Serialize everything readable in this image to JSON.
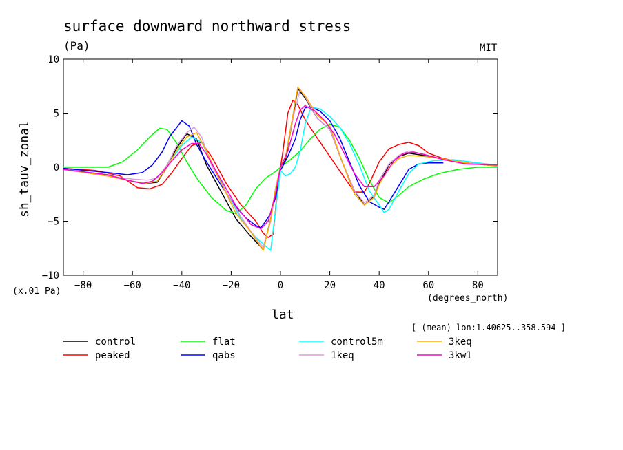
{
  "chart_data": {
    "type": "line",
    "title": "surface downward northward stress",
    "units": "(Pa)",
    "source": "MIT",
    "scale_note": "(x.01 Pa)",
    "xlabel": "lat",
    "x_units": "(degrees_north)",
    "ylabel": "sh_tauv_zonal",
    "subtitle": "[ (mean) lon:1.40625..358.594 ]",
    "xlim": [
      -88,
      88
    ],
    "ylim": [
      -10,
      10
    ],
    "x_ticks": [
      -80,
      -60,
      -40,
      -20,
      0,
      20,
      40,
      60,
      80
    ],
    "x_tick_labels": [
      "−80",
      "−60",
      "−40",
      "−20",
      "0",
      "20",
      "40",
      "60",
      "80"
    ],
    "y_ticks": [
      -10,
      -5,
      0,
      5,
      10
    ],
    "y_tick_labels": [
      "−10",
      "−5",
      "0",
      "5",
      "10"
    ],
    "series": [
      {
        "name": "control",
        "color": "#000000",
        "points": [
          [
            -88,
            -0.2
          ],
          [
            -70,
            -0.8
          ],
          [
            -60,
            -1.3
          ],
          [
            -55,
            -1.5
          ],
          [
            -50,
            -1.4
          ],
          [
            -46,
            0
          ],
          [
            -42,
            1.8
          ],
          [
            -38,
            3.1
          ],
          [
            -34,
            2.6
          ],
          [
            -30,
            0.2
          ],
          [
            -24,
            -2.3
          ],
          [
            -18,
            -4.8
          ],
          [
            -12,
            -6.4
          ],
          [
            -7,
            -7.6
          ],
          [
            -4,
            -4.8
          ],
          [
            -2,
            -2
          ],
          [
            0,
            0
          ],
          [
            2,
            0.7
          ],
          [
            5,
            4.5
          ],
          [
            7,
            7.3
          ],
          [
            10,
            6.4
          ],
          [
            15,
            4.5
          ],
          [
            20,
            3.5
          ],
          [
            25,
            0.5
          ],
          [
            30,
            -2.2
          ],
          [
            34,
            -3.5
          ],
          [
            38,
            -2.7
          ],
          [
            40,
            -1.5
          ],
          [
            44,
            0.2
          ],
          [
            48,
            1
          ],
          [
            52,
            1.3
          ],
          [
            58,
            1.1
          ],
          [
            65,
            0.8
          ],
          [
            75,
            0.4
          ],
          [
            88,
            0.1
          ]
        ]
      },
      {
        "name": "peaked",
        "color": "#ff0000",
        "points": [
          [
            -88,
            -0.1
          ],
          [
            -75,
            -0.3
          ],
          [
            -65,
            -0.8
          ],
          [
            -58,
            -1.9
          ],
          [
            -53,
            -2
          ],
          [
            -48,
            -1.6
          ],
          [
            -44,
            -0.5
          ],
          [
            -40,
            0.8
          ],
          [
            -36,
            2
          ],
          [
            -32,
            2.3
          ],
          [
            -28,
            1
          ],
          [
            -22,
            -1.5
          ],
          [
            -16,
            -3.5
          ],
          [
            -10,
            -5
          ],
          [
            -7,
            -6.1
          ],
          [
            -5,
            -6.5
          ],
          [
            -3,
            -6.2
          ],
          [
            -1,
            -1.5
          ],
          [
            1,
            1.5
          ],
          [
            3,
            5
          ],
          [
            5,
            6.2
          ],
          [
            7,
            5.8
          ],
          [
            10,
            4.4
          ],
          [
            14,
            3
          ],
          [
            20,
            1
          ],
          [
            26,
            -1
          ],
          [
            30,
            -2.3
          ],
          [
            34,
            -2.3
          ],
          [
            36,
            -1.5
          ],
          [
            40,
            0.5
          ],
          [
            44,
            1.7
          ],
          [
            48,
            2.1
          ],
          [
            52,
            2.3
          ],
          [
            56,
            2
          ],
          [
            60,
            1.3
          ],
          [
            66,
            0.8
          ],
          [
            75,
            0.4
          ],
          [
            88,
            0.2
          ]
        ]
      },
      {
        "name": "flat",
        "color": "#00ff00",
        "points": [
          [
            -88,
            0
          ],
          [
            -78,
            0
          ],
          [
            -70,
            0
          ],
          [
            -64,
            0.5
          ],
          [
            -58,
            1.6
          ],
          [
            -53,
            2.8
          ],
          [
            -49,
            3.6
          ],
          [
            -46,
            3.5
          ],
          [
            -42,
            2.2
          ],
          [
            -38,
            0.5
          ],
          [
            -34,
            -1
          ],
          [
            -28,
            -2.8
          ],
          [
            -22,
            -4
          ],
          [
            -18,
            -4.3
          ],
          [
            -14,
            -3.5
          ],
          [
            -10,
            -2
          ],
          [
            -6,
            -1
          ],
          [
            -2,
            -0.4
          ],
          [
            0,
            0
          ],
          [
            4,
            0.7
          ],
          [
            8,
            1.5
          ],
          [
            12,
            2.6
          ],
          [
            16,
            3.5
          ],
          [
            20,
            4
          ],
          [
            24,
            3.7
          ],
          [
            28,
            2.5
          ],
          [
            32,
            0.8
          ],
          [
            36,
            -1.2
          ],
          [
            40,
            -2.8
          ],
          [
            44,
            -3.3
          ],
          [
            48,
            -2.6
          ],
          [
            52,
            -1.8
          ],
          [
            58,
            -1.1
          ],
          [
            64,
            -0.6
          ],
          [
            72,
            -0.2
          ],
          [
            80,
            0
          ],
          [
            88,
            0
          ]
        ]
      },
      {
        "name": "qabs",
        "color": "#0000ff",
        "points": [
          [
            -88,
            -0.1
          ],
          [
            -70,
            -0.5
          ],
          [
            -62,
            -0.7
          ],
          [
            -56,
            -0.5
          ],
          [
            -52,
            0.2
          ],
          [
            -48,
            1.4
          ],
          [
            -45,
            2.8
          ],
          [
            -42,
            3.7
          ],
          [
            -40,
            4.3
          ],
          [
            -37,
            3.8
          ],
          [
            -34,
            2.1
          ],
          [
            -30,
            0.5
          ],
          [
            -24,
            -1.7
          ],
          [
            -18,
            -3.7
          ],
          [
            -14,
            -4.7
          ],
          [
            -10,
            -5.4
          ],
          [
            -8,
            -5.6
          ],
          [
            -6,
            -5
          ],
          [
            -4,
            -4.3
          ],
          [
            -2,
            -2.8
          ],
          [
            0,
            -0.3
          ],
          [
            3,
            1
          ],
          [
            6,
            2.6
          ],
          [
            8,
            4.4
          ],
          [
            10,
            5.5
          ],
          [
            12,
            5.6
          ],
          [
            16,
            5.2
          ],
          [
            20,
            4.3
          ],
          [
            24,
            2.7
          ],
          [
            28,
            0.5
          ],
          [
            32,
            -1.7
          ],
          [
            36,
            -3.2
          ],
          [
            40,
            -3.7
          ],
          [
            42,
            -3.9
          ],
          [
            44,
            -3.2
          ],
          [
            48,
            -1.7
          ],
          [
            52,
            -0.2
          ],
          [
            56,
            0.3
          ],
          [
            60,
            0.4
          ],
          [
            66,
            0.4
          ]
        ]
      },
      {
        "name": "control5m",
        "color": "#00ffff",
        "points": [
          [
            -88,
            -0.2
          ],
          [
            -70,
            -0.7
          ],
          [
            -62,
            -1.2
          ],
          [
            -56,
            -1.5
          ],
          [
            -52,
            -1.4
          ],
          [
            -48,
            -0.5
          ],
          [
            -44,
            0.8
          ],
          [
            -40,
            2
          ],
          [
            -36,
            2.8
          ],
          [
            -32,
            2.3
          ],
          [
            -28,
            0.5
          ],
          [
            -22,
            -2.3
          ],
          [
            -16,
            -4.8
          ],
          [
            -10,
            -6.5
          ],
          [
            -6,
            -7.3
          ],
          [
            -4,
            -7.7
          ],
          [
            -2,
            -4
          ],
          [
            0,
            -0.3
          ],
          [
            2,
            -0.8
          ],
          [
            4,
            -0.6
          ],
          [
            6,
            0
          ],
          [
            8,
            1.5
          ],
          [
            10,
            4
          ],
          [
            12,
            5.3
          ],
          [
            14,
            5.5
          ],
          [
            16,
            5.4
          ],
          [
            20,
            4.7
          ],
          [
            24,
            3.7
          ],
          [
            28,
            2.2
          ],
          [
            32,
            0.2
          ],
          [
            36,
            -2.2
          ],
          [
            40,
            -3.5
          ],
          [
            42,
            -4.2
          ],
          [
            44,
            -3.9
          ],
          [
            48,
            -2.2
          ],
          [
            52,
            -0.6
          ],
          [
            56,
            0.3
          ],
          [
            62,
            0.6
          ],
          [
            70,
            0.7
          ],
          [
            80,
            0.4
          ],
          [
            88,
            0.2
          ]
        ]
      },
      {
        "name": "1keq",
        "color": "#dd99dd",
        "points": [
          [
            -88,
            -0.2
          ],
          [
            -70,
            -0.8
          ],
          [
            -60,
            -1.1
          ],
          [
            -54,
            -1.2
          ],
          [
            -50,
            -1
          ],
          [
            -46,
            0.2
          ],
          [
            -42,
            2
          ],
          [
            -38,
            3.2
          ],
          [
            -35,
            3.7
          ],
          [
            -32,
            2.8
          ],
          [
            -28,
            0.2
          ],
          [
            -22,
            -2.3
          ],
          [
            -16,
            -4.6
          ],
          [
            -10,
            -6.6
          ],
          [
            -7,
            -7.4
          ],
          [
            -4,
            -5
          ],
          [
            -2,
            -2
          ],
          [
            0,
            0
          ],
          [
            2,
            0.9
          ],
          [
            5,
            4.5
          ],
          [
            8,
            7.2
          ],
          [
            10,
            6.5
          ],
          [
            15,
            4.5
          ],
          [
            20,
            3.5
          ],
          [
            25,
            0.5
          ],
          [
            30,
            -2.2
          ],
          [
            34,
            -3.3
          ],
          [
            38,
            -2.6
          ],
          [
            40,
            -1.2
          ],
          [
            44,
            0.3
          ],
          [
            48,
            1.1
          ],
          [
            52,
            1.5
          ],
          [
            58,
            1.2
          ],
          [
            65,
            0.8
          ],
          [
            75,
            0.4
          ],
          [
            88,
            0.2
          ]
        ]
      },
      {
        "name": "3keq",
        "color": "#ffaa00",
        "points": [
          [
            -88,
            -0.2
          ],
          [
            -70,
            -0.8
          ],
          [
            -60,
            -1.3
          ],
          [
            -55,
            -1.5
          ],
          [
            -50,
            -1.3
          ],
          [
            -46,
            0
          ],
          [
            -42,
            1.6
          ],
          [
            -38,
            2.8
          ],
          [
            -34,
            3.2
          ],
          [
            -30,
            1.5
          ],
          [
            -24,
            -1.5
          ],
          [
            -18,
            -4.3
          ],
          [
            -12,
            -6
          ],
          [
            -7,
            -7.7
          ],
          [
            -4,
            -4.8
          ],
          [
            -2,
            -2
          ],
          [
            0,
            0
          ],
          [
            2,
            0.9
          ],
          [
            5,
            4.8
          ],
          [
            7,
            7.4
          ],
          [
            10,
            6.6
          ],
          [
            15,
            4.8
          ],
          [
            20,
            3.8
          ],
          [
            25,
            0.5
          ],
          [
            30,
            -2.5
          ],
          [
            34,
            -3.5
          ],
          [
            38,
            -2.8
          ],
          [
            40,
            -1.6
          ],
          [
            44,
            0
          ],
          [
            48,
            0.8
          ],
          [
            52,
            1.1
          ],
          [
            58,
            1
          ],
          [
            65,
            0.8
          ],
          [
            75,
            0.4
          ],
          [
            88,
            0.1
          ]
        ]
      },
      {
        "name": "3kw1",
        "color": "#ff00cc",
        "points": [
          [
            -88,
            -0.2
          ],
          [
            -70,
            -0.7
          ],
          [
            -62,
            -1.2
          ],
          [
            -56,
            -1.5
          ],
          [
            -52,
            -1.3
          ],
          [
            -48,
            -0.5
          ],
          [
            -44,
            0.6
          ],
          [
            -40,
            1.6
          ],
          [
            -36,
            2.2
          ],
          [
            -33,
            2.2
          ],
          [
            -30,
            1.2
          ],
          [
            -24,
            -1.2
          ],
          [
            -18,
            -3.6
          ],
          [
            -12,
            -5.3
          ],
          [
            -8,
            -5.7
          ],
          [
            -5,
            -5
          ],
          [
            -2,
            -2.5
          ],
          [
            0,
            0
          ],
          [
            3,
            1.5
          ],
          [
            6,
            4
          ],
          [
            8,
            5.3
          ],
          [
            10,
            5.7
          ],
          [
            14,
            5.2
          ],
          [
            18,
            4.3
          ],
          [
            22,
            3
          ],
          [
            26,
            1.2
          ],
          [
            30,
            -0.6
          ],
          [
            34,
            -1.8
          ],
          [
            38,
            -1.8
          ],
          [
            42,
            -0.8
          ],
          [
            46,
            0.6
          ],
          [
            50,
            1.3
          ],
          [
            54,
            1.4
          ],
          [
            58,
            1.2
          ],
          [
            66,
            0.7
          ],
          [
            75,
            0.3
          ],
          [
            88,
            0.2
          ]
        ]
      }
    ]
  }
}
